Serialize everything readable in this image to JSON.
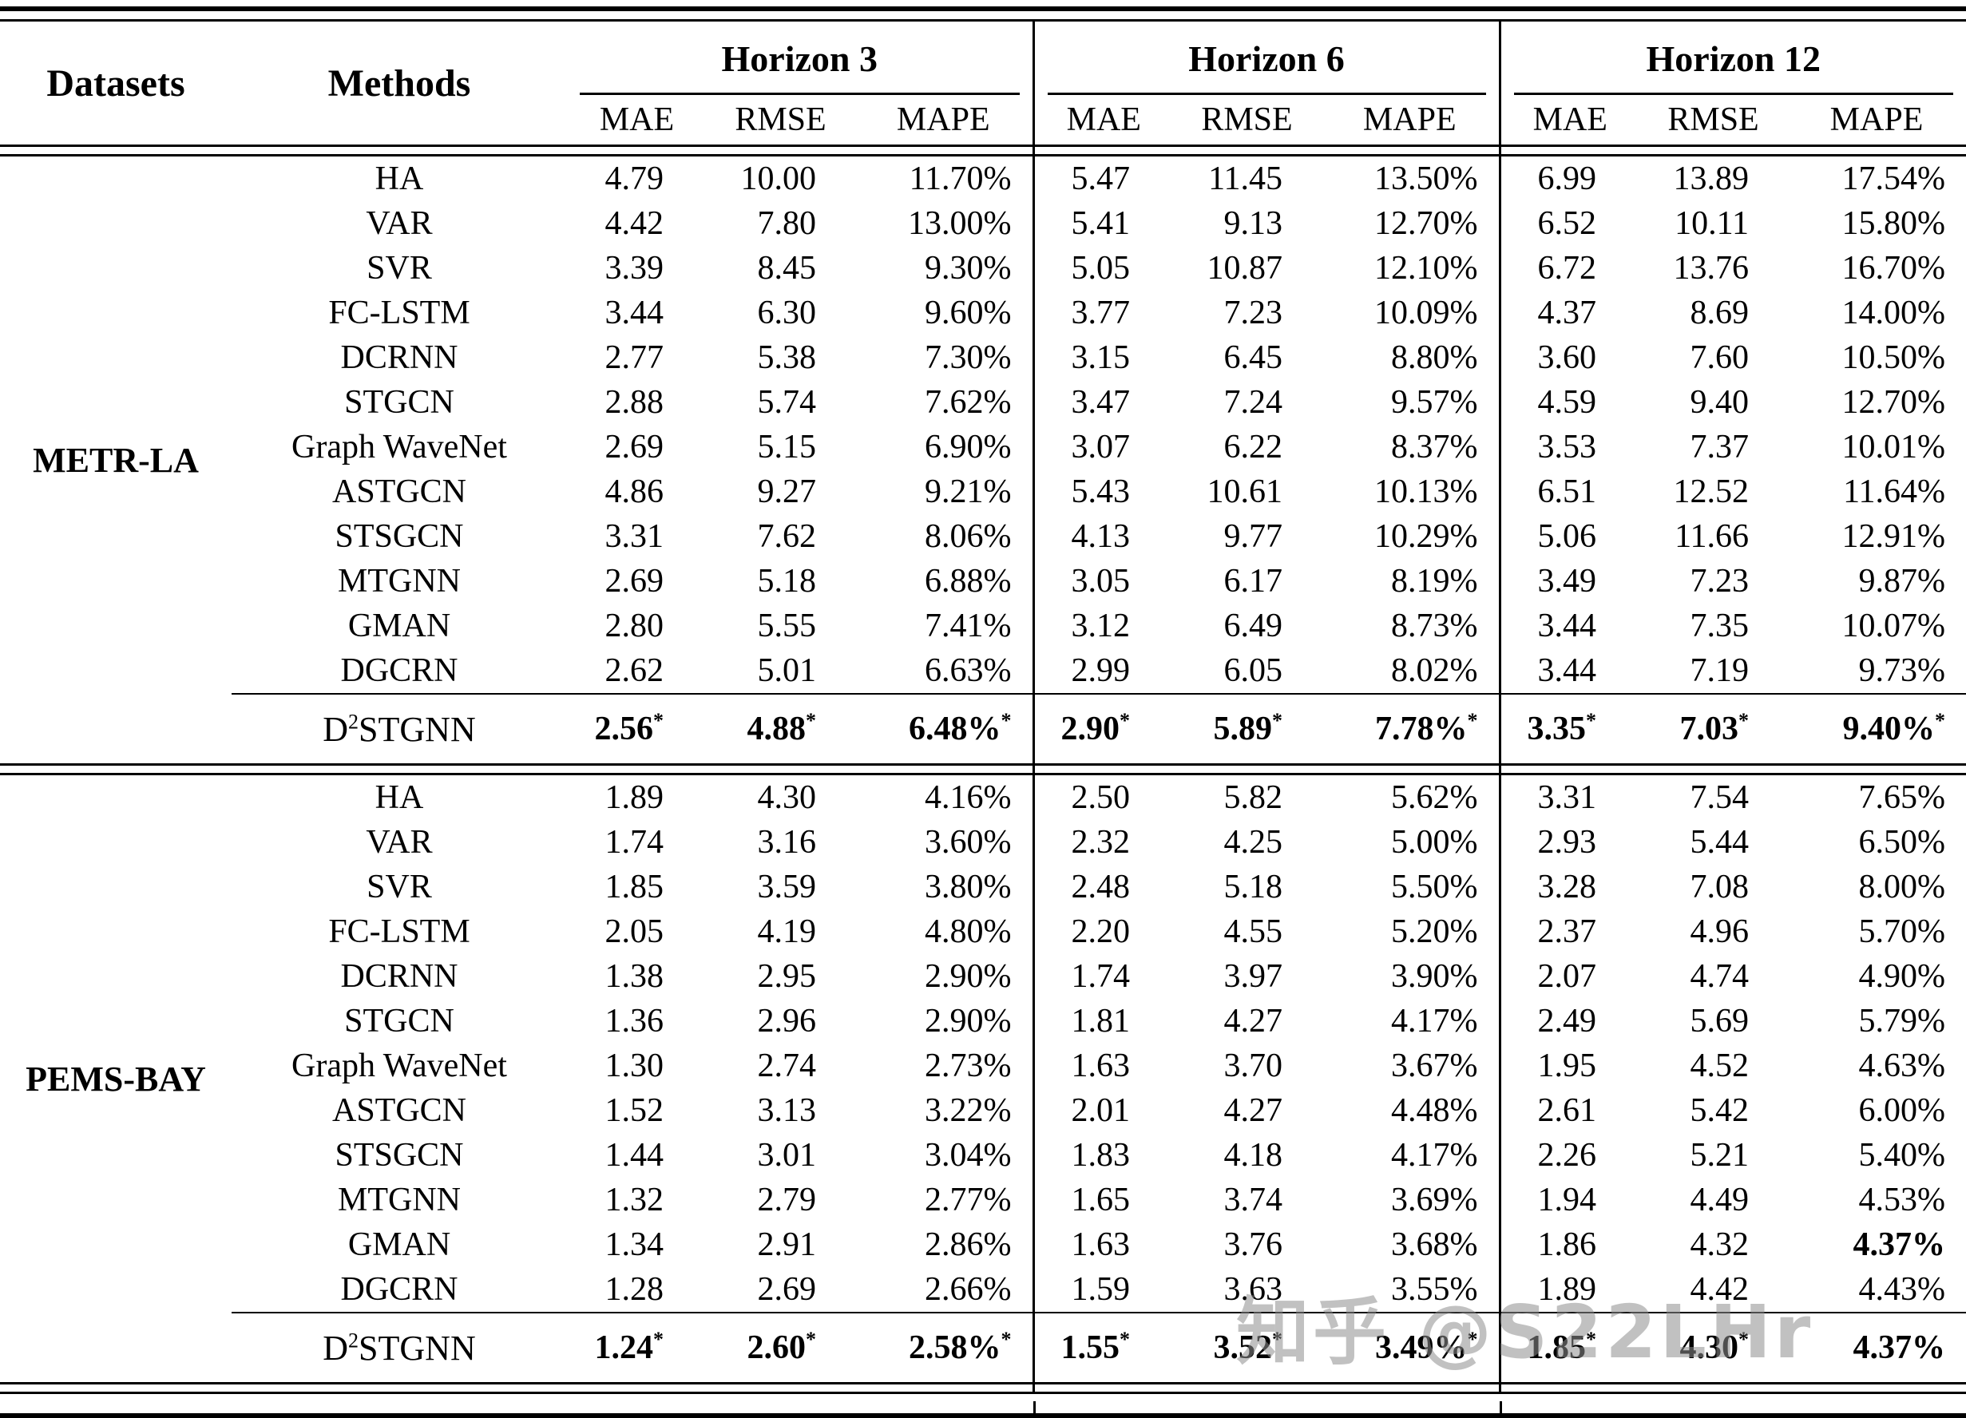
{
  "header": {
    "datasets": "Datasets",
    "methods": "Methods",
    "groups": [
      "Horizon 3",
      "Horizon 6",
      "Horizon 12"
    ],
    "metrics": [
      "MAE",
      "RMSE",
      "MAPE"
    ]
  },
  "sections": [
    {
      "dataset": "METR-LA",
      "rows": [
        {
          "method": "HA",
          "values": [
            "4.79",
            "10.00",
            "11.70%",
            "5.47",
            "11.45",
            "13.50%",
            "6.99",
            "13.89",
            "17.54%"
          ]
        },
        {
          "method": "VAR",
          "values": [
            "4.42",
            "7.80",
            "13.00%",
            "5.41",
            "9.13",
            "12.70%",
            "6.52",
            "10.11",
            "15.80%"
          ]
        },
        {
          "method": "SVR",
          "values": [
            "3.39",
            "8.45",
            "9.30%",
            "5.05",
            "10.87",
            "12.10%",
            "6.72",
            "13.76",
            "16.70%"
          ]
        },
        {
          "method": "FC-LSTM",
          "values": [
            "3.44",
            "6.30",
            "9.60%",
            "3.77",
            "7.23",
            "10.09%",
            "4.37",
            "8.69",
            "14.00%"
          ]
        },
        {
          "method": "DCRNN",
          "values": [
            "2.77",
            "5.38",
            "7.30%",
            "3.15",
            "6.45",
            "8.80%",
            "3.60",
            "7.60",
            "10.50%"
          ]
        },
        {
          "method": "STGCN",
          "values": [
            "2.88",
            "5.74",
            "7.62%",
            "3.47",
            "7.24",
            "9.57%",
            "4.59",
            "9.40",
            "12.70%"
          ]
        },
        {
          "method": "Graph WaveNet",
          "values": [
            "2.69",
            "5.15",
            "6.90%",
            "3.07",
            "6.22",
            "8.37%",
            "3.53",
            "7.37",
            "10.01%"
          ]
        },
        {
          "method": "ASTGCN",
          "values": [
            "4.86",
            "9.27",
            "9.21%",
            "5.43",
            "10.61",
            "10.13%",
            "6.51",
            "12.52",
            "11.64%"
          ]
        },
        {
          "method": "STSGCN",
          "values": [
            "3.31",
            "7.62",
            "8.06%",
            "4.13",
            "9.77",
            "10.29%",
            "5.06",
            "11.66",
            "12.91%"
          ]
        },
        {
          "method": "MTGNN",
          "values": [
            "2.69",
            "5.18",
            "6.88%",
            "3.05",
            "6.17",
            "8.19%",
            "3.49",
            "7.23",
            "9.87%"
          ]
        },
        {
          "method": "GMAN",
          "values": [
            "2.80",
            "5.55",
            "7.41%",
            "3.12",
            "6.49",
            "8.73%",
            "3.44",
            "7.35",
            "10.07%"
          ]
        },
        {
          "method": "DGCRN",
          "values": [
            "2.62",
            "5.01",
            "6.63%",
            "2.99",
            "6.05",
            "8.02%",
            "3.44",
            "7.19",
            "9.73%"
          ]
        }
      ],
      "best_row": {
        "method_base": "D",
        "method_sup": "2",
        "method_rest": "STGNN",
        "values": [
          "2.56",
          "4.88",
          "6.48%",
          "2.90",
          "5.89",
          "7.78%",
          "3.35",
          "7.03",
          "9.40%"
        ],
        "star": "*",
        "star_mask": [
          1,
          1,
          1,
          1,
          1,
          1,
          1,
          1,
          1
        ]
      }
    },
    {
      "dataset": "PEMS-BAY",
      "rows": [
        {
          "method": "HA",
          "values": [
            "1.89",
            "4.30",
            "4.16%",
            "2.50",
            "5.82",
            "5.62%",
            "3.31",
            "7.54",
            "7.65%"
          ]
        },
        {
          "method": "VAR",
          "values": [
            "1.74",
            "3.16",
            "3.60%",
            "2.32",
            "4.25",
            "5.00%",
            "2.93",
            "5.44",
            "6.50%"
          ]
        },
        {
          "method": "SVR",
          "values": [
            "1.85",
            "3.59",
            "3.80%",
            "2.48",
            "5.18",
            "5.50%",
            "3.28",
            "7.08",
            "8.00%"
          ]
        },
        {
          "method": "FC-LSTM",
          "values": [
            "2.05",
            "4.19",
            "4.80%",
            "2.20",
            "4.55",
            "5.20%",
            "2.37",
            "4.96",
            "5.70%"
          ]
        },
        {
          "method": "DCRNN",
          "values": [
            "1.38",
            "2.95",
            "2.90%",
            "1.74",
            "3.97",
            "3.90%",
            "2.07",
            "4.74",
            "4.90%"
          ]
        },
        {
          "method": "STGCN",
          "values": [
            "1.36",
            "2.96",
            "2.90%",
            "1.81",
            "4.27",
            "4.17%",
            "2.49",
            "5.69",
            "5.79%"
          ]
        },
        {
          "method": "Graph WaveNet",
          "values": [
            "1.30",
            "2.74",
            "2.73%",
            "1.63",
            "3.70",
            "3.67%",
            "1.95",
            "4.52",
            "4.63%"
          ]
        },
        {
          "method": "ASTGCN",
          "values": [
            "1.52",
            "3.13",
            "3.22%",
            "2.01",
            "4.27",
            "4.48%",
            "2.61",
            "5.42",
            "6.00%"
          ]
        },
        {
          "method": "STSGCN",
          "values": [
            "1.44",
            "3.01",
            "3.04%",
            "1.83",
            "4.18",
            "4.17%",
            "2.26",
            "5.21",
            "5.40%"
          ]
        },
        {
          "method": "MTGNN",
          "values": [
            "1.32",
            "2.79",
            "2.77%",
            "1.65",
            "3.74",
            "3.69%",
            "1.94",
            "4.49",
            "4.53%"
          ]
        },
        {
          "method": "GMAN",
          "values": [
            "1.34",
            "2.91",
            "2.86%",
            "1.63",
            "3.76",
            "3.68%",
            "1.86",
            "4.32",
            "4.37%"
          ],
          "bold": [
            8
          ]
        },
        {
          "method": "DGCRN",
          "values": [
            "1.28",
            "2.69",
            "2.66%",
            "1.59",
            "3.63",
            "3.55%",
            "1.89",
            "4.42",
            "4.43%"
          ]
        }
      ],
      "best_row": {
        "method_base": "D",
        "method_sup": "2",
        "method_rest": "STGNN",
        "values": [
          "1.24",
          "2.60",
          "2.58%",
          "1.55",
          "3.52",
          "3.49%",
          "1.85",
          "4.30",
          "4.37%"
        ],
        "star": "*",
        "star_mask": [
          1,
          1,
          1,
          1,
          1,
          1,
          1,
          1,
          0
        ]
      }
    }
  ],
  "watermark": "知乎 @S22LHr"
}
